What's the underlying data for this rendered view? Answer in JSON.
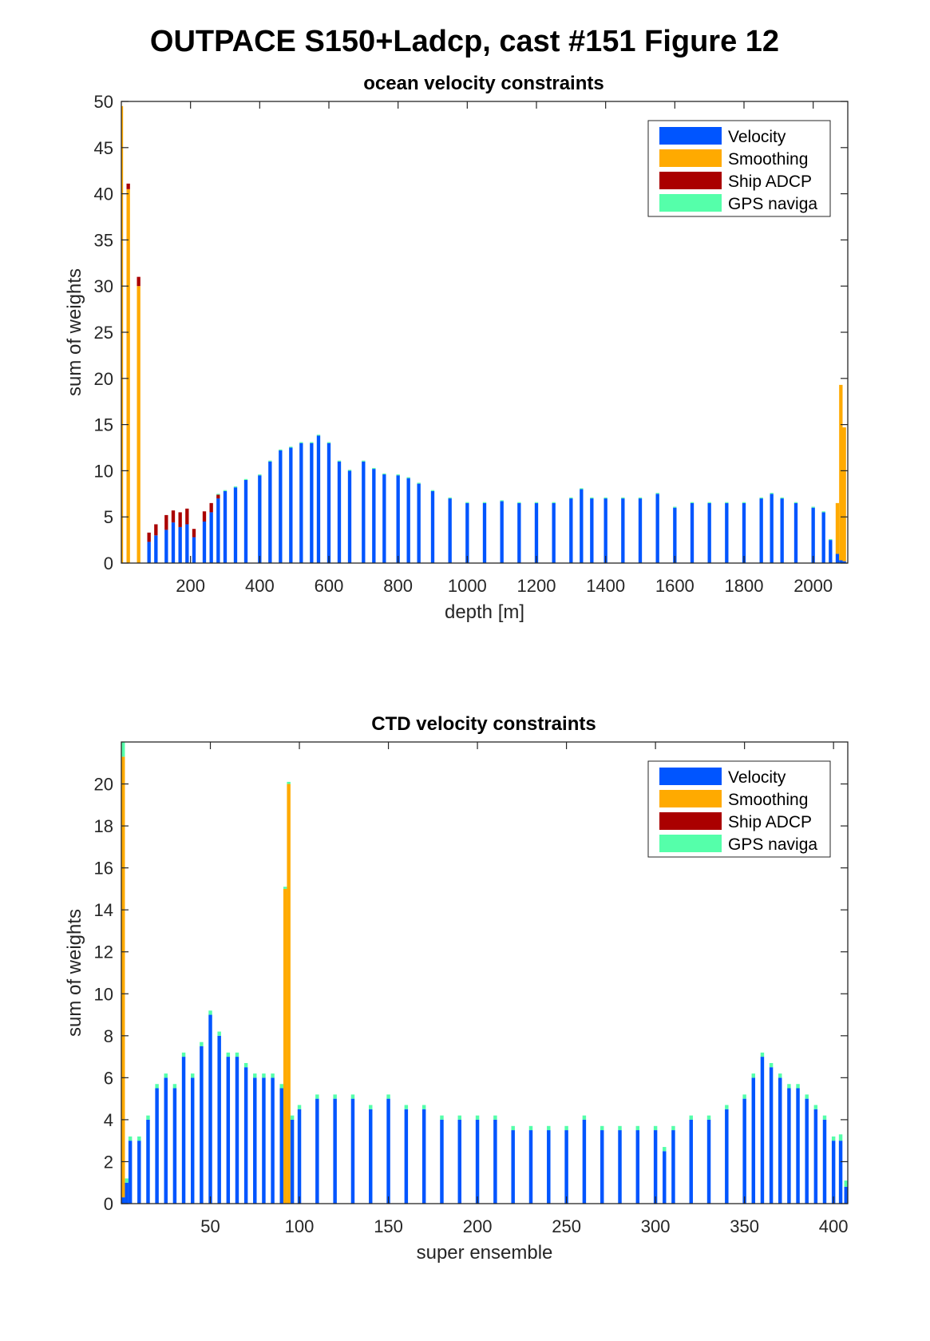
{
  "figure": {
    "title": "OUTPACE S150+Ladcp, cast #151  Figure 12"
  },
  "colors": {
    "velocity": "#0055ff",
    "smoothing": "#ffaa00",
    "ship_adcp": "#aa0000",
    "gps": "#55ffaa",
    "axis": "#262626"
  },
  "chart_data": [
    {
      "type": "bar",
      "stacked": true,
      "title": "ocean velocity constraints",
      "xlabel": "depth [m]",
      "ylabel": "sum of weights",
      "xlim": [
        0,
        2100
      ],
      "ylim": [
        0,
        50
      ],
      "xticks": [
        200,
        400,
        600,
        800,
        1000,
        1200,
        1400,
        1600,
        1800,
        2000
      ],
      "yticks": [
        0,
        5,
        10,
        15,
        20,
        25,
        30,
        35,
        40,
        45,
        50
      ],
      "legend": {
        "position": "top-right",
        "entries": [
          "Velocity",
          "Smoothing",
          "Ship ADCP",
          "GPS naviga"
        ]
      },
      "bin_width": 10,
      "x": [
        0,
        20,
        50,
        80,
        100,
        130,
        150,
        170,
        190,
        210,
        240,
        260,
        280,
        300,
        330,
        360,
        400,
        430,
        460,
        490,
        520,
        550,
        570,
        600,
        630,
        660,
        700,
        730,
        760,
        800,
        830,
        860,
        900,
        950,
        1000,
        1050,
        1100,
        1150,
        1200,
        1250,
        1300,
        1330,
        1360,
        1400,
        1450,
        1500,
        1550,
        1600,
        1650,
        1700,
        1750,
        1800,
        1850,
        1880,
        1910,
        1950,
        2000,
        2030,
        2050,
        2070,
        2080,
        2090
      ],
      "series": [
        {
          "name": "Velocity",
          "values": [
            0,
            0,
            0,
            2.3,
            3.0,
            3.6,
            4.4,
            3.9,
            4.2,
            2.8,
            4.5,
            5.5,
            7.0,
            7.8,
            8.2,
            9.0,
            9.5,
            11.0,
            12.2,
            12.5,
            13.0,
            13.0,
            13.8,
            13.0,
            11.0,
            10.0,
            11.0,
            10.2,
            9.6,
            9.5,
            9.2,
            8.6,
            7.8,
            7.0,
            6.5,
            6.5,
            6.7,
            6.5,
            6.5,
            6.5,
            7.0,
            8.0,
            7.0,
            7.0,
            7.0,
            7.0,
            7.5,
            6.0,
            6.5,
            6.5,
            6.5,
            6.5,
            7.0,
            7.5,
            7.0,
            6.5,
            6.0,
            5.5,
            2.5,
            1.0,
            0.3,
            0.2
          ]
        },
        {
          "name": "Smoothing",
          "values": [
            49.5,
            40.5,
            30.0,
            0,
            0,
            0,
            0,
            0,
            0,
            0,
            0,
            0,
            0,
            0,
            0,
            0,
            0,
            0,
            0,
            0,
            0,
            0,
            0,
            0,
            0,
            0,
            0,
            0,
            0,
            0,
            0,
            0,
            0,
            0,
            0,
            0,
            0,
            0,
            0,
            0,
            0,
            0,
            0,
            0,
            0,
            0,
            0,
            0,
            0,
            0,
            0,
            0,
            0,
            0,
            0,
            0,
            0,
            0,
            0,
            5.5,
            19.0,
            14.5
          ]
        },
        {
          "name": "Ship ADCP",
          "values": [
            0,
            0.6,
            1.0,
            1.0,
            1.2,
            1.6,
            1.3,
            1.6,
            1.7,
            0.9,
            1.1,
            1.0,
            0.4,
            0,
            0,
            0,
            0,
            0,
            0,
            0,
            0,
            0,
            0,
            0,
            0,
            0,
            0,
            0,
            0,
            0,
            0,
            0,
            0,
            0,
            0,
            0,
            0,
            0,
            0,
            0,
            0,
            0,
            0,
            0,
            0,
            0,
            0,
            0,
            0,
            0,
            0,
            0,
            0,
            0,
            0,
            0,
            0,
            0,
            0,
            0,
            0,
            0
          ]
        },
        {
          "name": "GPS naviga",
          "values": [
            0,
            0,
            0,
            0,
            0,
            0,
            0,
            0,
            0,
            0,
            0,
            0,
            0.1,
            0.1,
            0.1,
            0.1,
            0.1,
            0.1,
            0.1,
            0.1,
            0.1,
            0.1,
            0.1,
            0.1,
            0.1,
            0.1,
            0.1,
            0.1,
            0.1,
            0.1,
            0.1,
            0.1,
            0.1,
            0.1,
            0.1,
            0.1,
            0.1,
            0.1,
            0.1,
            0.1,
            0.1,
            0.1,
            0.1,
            0.1,
            0.1,
            0.1,
            0.1,
            0.1,
            0.1,
            0.1,
            0.1,
            0.1,
            0.1,
            0.1,
            0.1,
            0.1,
            0.1,
            0.1,
            0.1,
            0,
            0,
            0
          ]
        }
      ]
    },
    {
      "type": "bar",
      "stacked": true,
      "title": "CTD velocity constraints",
      "xlabel": "super ensemble",
      "ylabel": "sum of weights",
      "xlim": [
        0,
        408
      ],
      "ylim": [
        0,
        22
      ],
      "xticks": [
        50,
        100,
        150,
        200,
        250,
        300,
        350,
        400
      ],
      "yticks": [
        0,
        2,
        4,
        6,
        8,
        10,
        12,
        14,
        16,
        18,
        20
      ],
      "legend": {
        "position": "top-right",
        "entries": [
          "Velocity",
          "Smoothing",
          "Ship ADCP",
          "GPS naviga"
        ]
      },
      "bin_width": 2,
      "x": [
        1,
        3,
        5,
        10,
        15,
        20,
        25,
        30,
        35,
        40,
        45,
        50,
        55,
        60,
        65,
        70,
        75,
        80,
        85,
        90,
        92,
        94,
        96,
        100,
        110,
        120,
        130,
        140,
        150,
        160,
        170,
        180,
        190,
        200,
        210,
        220,
        230,
        240,
        250,
        260,
        270,
        280,
        290,
        300,
        305,
        310,
        320,
        330,
        340,
        350,
        355,
        360,
        365,
        370,
        375,
        380,
        385,
        390,
        395,
        400,
        404,
        407
      ],
      "series": [
        {
          "name": "Velocity",
          "values": [
            0.3,
            1.0,
            3.0,
            3.0,
            4.0,
            5.5,
            6.0,
            5.5,
            7.0,
            6.0,
            7.5,
            9.0,
            8.0,
            7.0,
            7.0,
            6.5,
            6.0,
            6.0,
            6.0,
            5.5,
            0,
            0,
            4.0,
            4.5,
            5.0,
            5.0,
            5.0,
            4.5,
            5.0,
            4.5,
            4.5,
            4.0,
            4.0,
            4.0,
            4.0,
            3.5,
            3.5,
            3.5,
            3.5,
            4.0,
            3.5,
            3.5,
            3.5,
            3.5,
            2.5,
            3.5,
            4.0,
            4.0,
            4.5,
            5.0,
            6.0,
            7.0,
            6.5,
            6.0,
            5.5,
            5.5,
            5.0,
            4.5,
            4.0,
            3.0,
            3.0,
            0.8
          ]
        },
        {
          "name": "Smoothing",
          "values": [
            21.0,
            0,
            0,
            0,
            0,
            0,
            0,
            0,
            0,
            0,
            0,
            0,
            0,
            0,
            0,
            0,
            0,
            0,
            0,
            0,
            15.0,
            20.0,
            0,
            0,
            0,
            0,
            0,
            0,
            0,
            0,
            0,
            0,
            0,
            0,
            0,
            0,
            0,
            0,
            0,
            0,
            0,
            0,
            0,
            0,
            0,
            0,
            0,
            0,
            0,
            0,
            0,
            0,
            0,
            0,
            0,
            0,
            0,
            0,
            0,
            0,
            0,
            0
          ]
        },
        {
          "name": "Ship ADCP",
          "values": [
            0,
            0,
            0,
            0,
            0,
            0,
            0,
            0,
            0,
            0,
            0,
            0,
            0,
            0,
            0,
            0,
            0,
            0,
            0,
            0,
            0,
            0,
            0,
            0,
            0,
            0,
            0,
            0,
            0,
            0,
            0,
            0,
            0,
            0,
            0,
            0,
            0,
            0,
            0,
            0,
            0,
            0,
            0,
            0,
            0,
            0,
            0,
            0,
            0,
            0,
            0,
            0,
            0,
            0,
            0,
            0,
            0,
            0,
            0,
            0,
            0,
            0
          ]
        },
        {
          "name": "GPS naviga",
          "values": [
            0.8,
            0.2,
            0.2,
            0.2,
            0.2,
            0.2,
            0.2,
            0.2,
            0.2,
            0.2,
            0.2,
            0.2,
            0.2,
            0.2,
            0.2,
            0.2,
            0.2,
            0.2,
            0.2,
            0.2,
            0.1,
            0.1,
            0.2,
            0.2,
            0.2,
            0.2,
            0.2,
            0.2,
            0.2,
            0.2,
            0.2,
            0.2,
            0.2,
            0.2,
            0.2,
            0.2,
            0.2,
            0.2,
            0.2,
            0.2,
            0.2,
            0.2,
            0.2,
            0.2,
            0.2,
            0.2,
            0.2,
            0.2,
            0.2,
            0.2,
            0.2,
            0.2,
            0.2,
            0.2,
            0.2,
            0.2,
            0.2,
            0.2,
            0.2,
            0.2,
            0.3,
            0.3
          ]
        }
      ]
    }
  ]
}
